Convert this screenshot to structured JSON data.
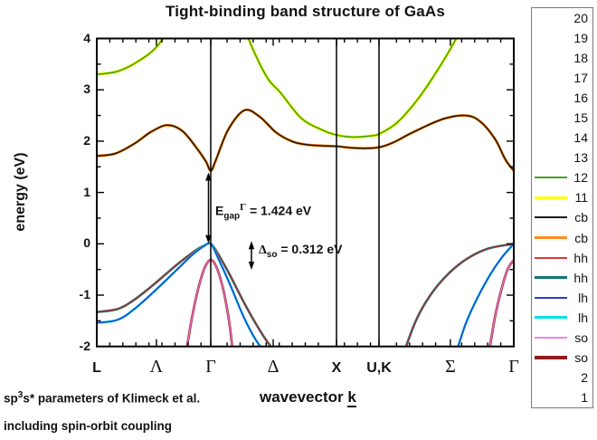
{
  "title": "Tight-binding band structure of GaAs",
  "y_axis": {
    "label": "energy (eV)",
    "ticks": [
      4,
      3,
      2,
      1,
      0,
      -1,
      -2
    ],
    "minor_step": 0.5,
    "range": [
      -2,
      4
    ]
  },
  "x_axis": {
    "label_prefix": "wavevector ",
    "label_k": "k",
    "ticks": [
      {
        "label": "L",
        "k": 0.0,
        "greek": false,
        "vline": false
      },
      {
        "label": "Λ",
        "k": 0.143,
        "greek": true,
        "vline": false
      },
      {
        "label": "Γ",
        "k": 0.2733,
        "greek": true,
        "vline": true
      },
      {
        "label": "Δ",
        "k": 0.423,
        "greek": true,
        "vline": false
      },
      {
        "label": "X",
        "k": 0.5749,
        "greek": false,
        "vline": true
      },
      {
        "label": "U,K",
        "k": 0.6768,
        "greek": false,
        "vline": true
      },
      {
        "label": "Σ",
        "k": 0.848,
        "greek": true,
        "vline": false
      },
      {
        "label": "Γ",
        "k": 1.0,
        "greek": true,
        "vline": false
      }
    ]
  },
  "annotations": {
    "gap": {
      "base": "E",
      "sub": "gap",
      "sup": "Γ",
      "rest": " = 1.424 eV"
    },
    "so": {
      "base": "Δ",
      "sub": "so",
      "rest": " = 0.312 eV"
    }
  },
  "footnotes": {
    "line1_base": "sp",
    "line1_sup": "3",
    "line1_rest": "s* parameters of Klimeck et al.",
    "line2": "including spin-orbit coupling"
  },
  "legend": {
    "entries": [
      {
        "label": "20"
      },
      {
        "label": "19"
      },
      {
        "label": "18"
      },
      {
        "label": "17"
      },
      {
        "label": "16"
      },
      {
        "label": "15"
      },
      {
        "label": "14"
      },
      {
        "label": "13"
      },
      {
        "label": "12",
        "color": "#3fa31e",
        "lw": 2
      },
      {
        "label": "11",
        "color": "#ffff00",
        "lw": 3.5
      },
      {
        "label": "cb",
        "color": "#1a1a1a",
        "lw": 2
      },
      {
        "label": "cb",
        "color": "#ff8c1a",
        "lw": 3.5
      },
      {
        "label": "hh",
        "color": "#d93a34",
        "lw": 2
      },
      {
        "label": "hh",
        "color": "#0e7575",
        "lw": 3.5
      },
      {
        "label": "lh",
        "color": "#2b3bce",
        "lw": 2
      },
      {
        "label": "lh",
        "color": "#00e0e8",
        "lw": 3.5
      },
      {
        "label": "so",
        "color": "#ee82ee",
        "lw": 2
      },
      {
        "label": "so",
        "color": "#8f1a1a",
        "lw": 3.5
      },
      {
        "label": "2"
      },
      {
        "label": "1"
      }
    ]
  },
  "chart_data": {
    "type": "line",
    "title": "Tight-binding band structure of GaAs",
    "xlabel": "wavevector k",
    "ylabel": "energy (eV)",
    "ylim": [
      -2,
      4
    ],
    "x_unit": "fraction of k-path L→Λ→Γ→Δ→X→U,K→Σ→Γ",
    "grid": false,
    "legend_position": "right-outside",
    "key_values": {
      "E_gap_Gamma_eV": 1.424,
      "Delta_so_eV": 0.312,
      "cb_min_at_Gamma_eV": 1.424,
      "so_max_at_Gamma_eV": -0.312
    },
    "symmetry_points": [
      [
        "L",
        0.0
      ],
      [
        "Γ",
        0.2733
      ],
      [
        "X",
        0.5749
      ],
      [
        "U,K",
        0.6768
      ],
      [
        "Γ",
        1.0
      ]
    ],
    "series": [
      {
        "name": "bands 11/12 (upper conduction, yellow+green)",
        "colors": [
          "#ffff00",
          "#3fa31e"
        ],
        "widths": [
          3.2,
          1.6
        ],
        "segments": [
          [
            [
              0,
              3.3
            ],
            [
              0.05,
              3.36
            ],
            [
              0.1,
              3.56
            ],
            [
              0.145,
              3.85
            ],
            [
              0.19,
              4.4
            ]
          ],
          [
            [
              0.345,
              4.4
            ],
            [
              0.375,
              3.78
            ],
            [
              0.41,
              3.22
            ],
            [
              0.44,
              2.95
            ],
            [
              0.49,
              2.45
            ],
            [
              0.54,
              2.22
            ],
            [
              0.575,
              2.12
            ],
            [
              0.615,
              2.08
            ],
            [
              0.655,
              2.1
            ],
            [
              0.677,
              2.14
            ],
            [
              0.72,
              2.36
            ],
            [
              0.77,
              2.82
            ],
            [
              0.82,
              3.42
            ],
            [
              0.862,
              4.0
            ],
            [
              0.885,
              4.4
            ]
          ]
        ]
      },
      {
        "name": "cb (lowest conduction, orange+black)",
        "colors": [
          "#ff8c1a",
          "#1c1208"
        ],
        "widths": [
          3.0,
          1.5
        ],
        "segments": [
          [
            [
              0,
              1.71
            ],
            [
              0.045,
              1.76
            ],
            [
              0.09,
              1.95
            ],
            [
              0.13,
              2.18
            ],
            [
              0.169,
              2.31
            ],
            [
              0.205,
              2.2
            ],
            [
              0.24,
              1.86
            ],
            [
              0.262,
              1.6
            ],
            [
              0.2733,
              1.424
            ],
            [
              0.285,
              1.62
            ],
            [
              0.315,
              2.22
            ],
            [
              0.3536,
              2.6
            ],
            [
              0.39,
              2.48
            ],
            [
              0.43,
              2.17
            ],
            [
              0.47,
              1.99
            ],
            [
              0.505,
              1.93
            ],
            [
              0.54,
              1.91
            ],
            [
              0.575,
              1.9
            ],
            [
              0.61,
              1.87
            ],
            [
              0.645,
              1.86
            ],
            [
              0.677,
              1.88
            ],
            [
              0.71,
              1.97
            ],
            [
              0.76,
              2.18
            ],
            [
              0.83,
              2.43
            ],
            [
              0.885,
              2.5
            ],
            [
              0.92,
              2.38
            ],
            [
              0.955,
              2.04
            ],
            [
              0.98,
              1.64
            ],
            [
              1,
              1.424
            ]
          ]
        ]
      },
      {
        "name": "hh (heavy hole, teal+red)",
        "colors": [
          "#0e7575",
          "#a03530"
        ],
        "widths": [
          2.6,
          1.5
        ],
        "segments": [
          [
            [
              0,
              -1.33
            ],
            [
              0.05,
              -1.27
            ],
            [
              0.09,
              -1.09
            ],
            [
              0.14,
              -0.77
            ],
            [
              0.19,
              -0.42
            ],
            [
              0.23,
              -0.17
            ],
            [
              0.256,
              -0.04
            ],
            [
              0.2733,
              0
            ],
            [
              0.291,
              -0.2
            ],
            [
              0.32,
              -0.62
            ],
            [
              0.36,
              -1.25
            ],
            [
              0.4,
              -1.8
            ],
            [
              0.436,
              -2.2
            ]
          ],
          [
            [
              0.733,
              -2.2
            ],
            [
              0.765,
              -1.5
            ],
            [
              0.8,
              -1.0
            ],
            [
              0.845,
              -0.57
            ],
            [
              0.89,
              -0.28
            ],
            [
              0.94,
              -0.09
            ],
            [
              1,
              0
            ]
          ]
        ]
      },
      {
        "name": "lh (light hole, cyan+blue)",
        "colors": [
          "#00e0e8",
          "#2b3bce"
        ],
        "widths": [
          2.6,
          1.5
        ],
        "segments": [
          [
            [
              0,
              -1.54
            ],
            [
              0.05,
              -1.48
            ],
            [
              0.09,
              -1.27
            ],
            [
              0.14,
              -0.91
            ],
            [
              0.19,
              -0.52
            ],
            [
              0.23,
              -0.21
            ],
            [
              0.256,
              -0.05
            ],
            [
              0.2733,
              0
            ],
            [
              0.291,
              -0.28
            ],
            [
              0.32,
              -0.8
            ],
            [
              0.352,
              -1.42
            ],
            [
              0.382,
              -1.88
            ],
            [
              0.412,
              -2.2
            ]
          ],
          [
            [
              0.859,
              -2.2
            ],
            [
              0.885,
              -1.55
            ],
            [
              0.915,
              -1.02
            ],
            [
              0.945,
              -0.58
            ],
            [
              0.972,
              -0.26
            ],
            [
              1,
              0
            ]
          ]
        ]
      },
      {
        "name": "so (split-off, dark-red+violet)",
        "colors": [
          "#8f1a1a",
          "#e66fc8"
        ],
        "widths": [
          2.6,
          1.4
        ],
        "segments": [
          [
            [
              0.2126,
              -2.2
            ],
            [
              0.228,
              -1.45
            ],
            [
              0.243,
              -0.88
            ],
            [
              0.257,
              -0.5
            ],
            [
              0.266,
              -0.36
            ],
            [
              0.2733,
              -0.31
            ],
            [
              0.281,
              -0.36
            ],
            [
              0.292,
              -0.56
            ],
            [
              0.305,
              -0.95
            ],
            [
              0.318,
              -1.55
            ],
            [
              0.3276,
              -2.2
            ]
          ],
          [
            [
              0.939,
              -2.2
            ],
            [
              0.955,
              -1.42
            ],
            [
              0.97,
              -0.9
            ],
            [
              0.985,
              -0.5
            ],
            [
              1,
              -0.315
            ]
          ]
        ]
      }
    ]
  }
}
